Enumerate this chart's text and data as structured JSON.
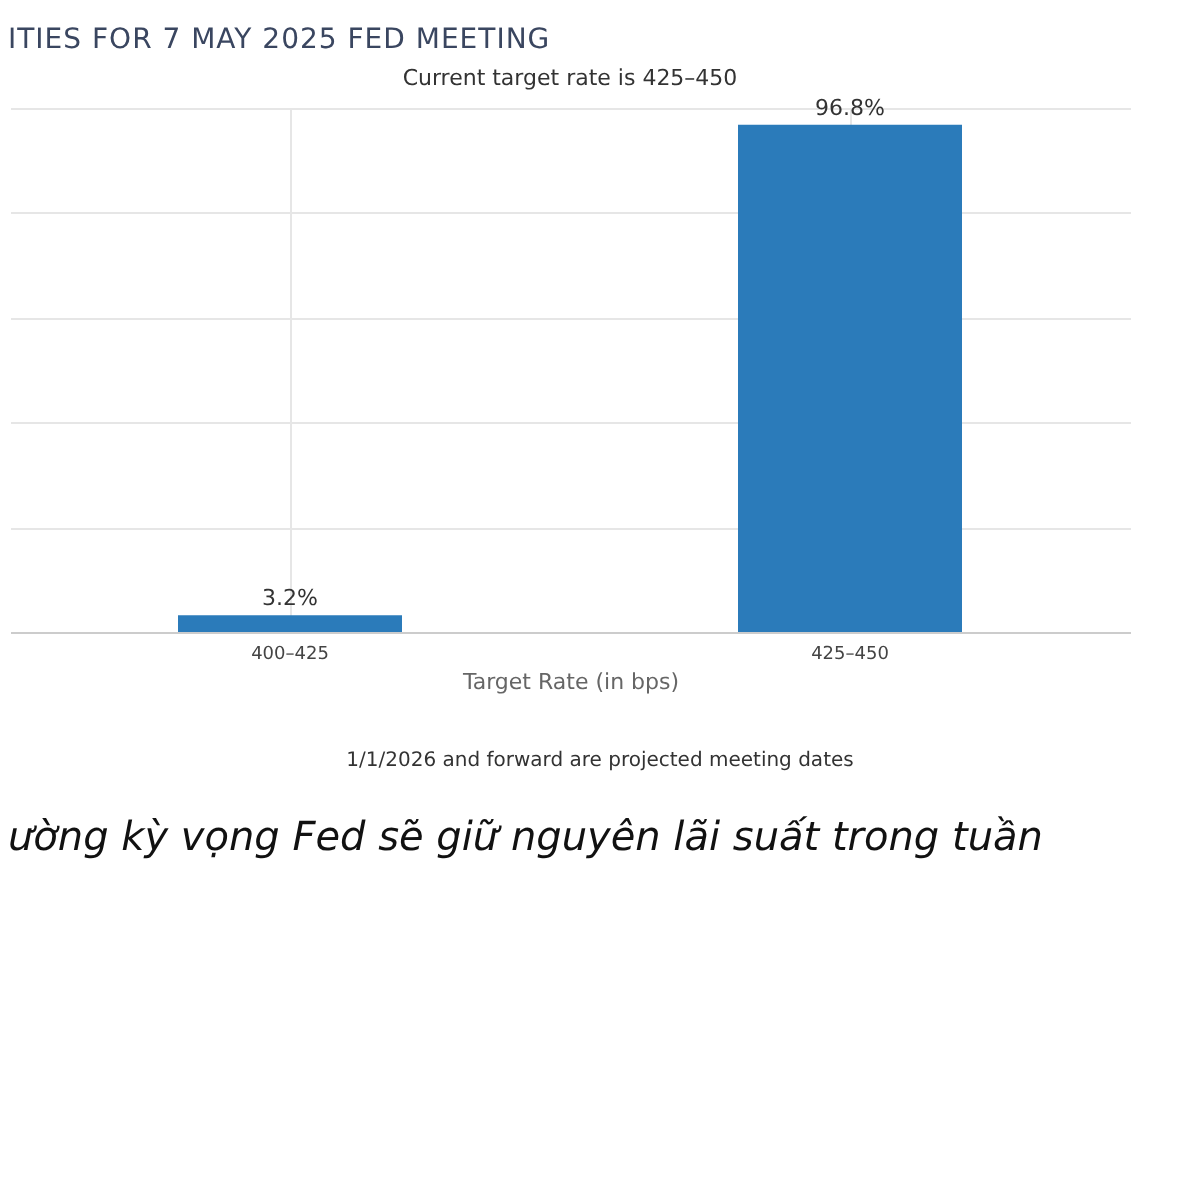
{
  "chart_data": {
    "type": "bar",
    "title": "ITIES FOR 7 MAY 2025 FED MEETING",
    "subtitle": "Current target rate is 425–450",
    "xlabel": "Target Rate (in bps)",
    "categories": [
      "400–425",
      "425–450"
    ],
    "series": [
      {
        "color": "#2b7bba",
        "values": [
          3.2,
          96.8
        ],
        "value_labels": [
          "3.2%",
          "96.8%"
        ]
      }
    ],
    "ylim": [
      0,
      100
    ],
    "yticks": [
      {
        "value": 0,
        "label": null
      },
      {
        "value": 20,
        "label": null
      },
      {
        "value": 40,
        "label": null
      },
      {
        "value": 60,
        "label": null
      },
      {
        "value": 80,
        "label": null
      },
      {
        "value": 100,
        "label": null
      }
    ],
    "tick_labels": "x",
    "grid": true,
    "annotations": [
      "1/1/2026 and forward are projected meeting dates",
      "ường kỳ vọng Fed sẽ giữ nguyên lãi suất trong tuần"
    ]
  }
}
